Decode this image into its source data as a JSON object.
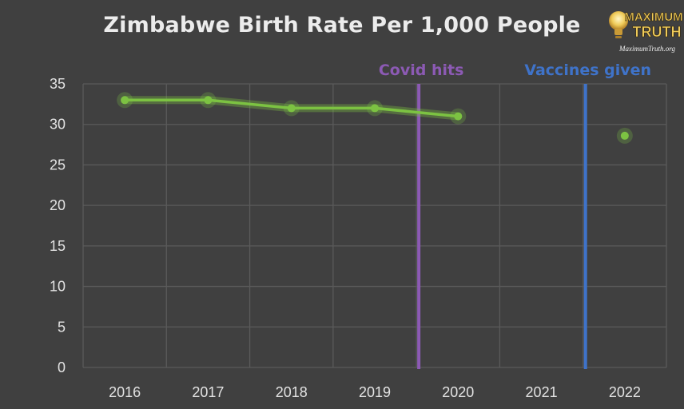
{
  "chart_data": {
    "type": "line",
    "title": "Zimbabwe Birth Rate Per 1,000 People",
    "xlabel": "",
    "ylabel": "",
    "categories": [
      "2016",
      "2017",
      "2018",
      "2019",
      "2020",
      "2021",
      "2022"
    ],
    "ylim": [
      0,
      35
    ],
    "yticks": [
      0,
      5,
      10,
      15,
      20,
      25,
      30,
      35
    ],
    "grid": true,
    "legend": "none",
    "series": [
      {
        "color": "#7cc242",
        "values": [
          33,
          33,
          32,
          32,
          31,
          null,
          28.6
        ]
      }
    ],
    "annotations": [
      {
        "text": "Covid hits",
        "x_between": [
          "2019",
          "2020"
        ],
        "position": 0.5,
        "color": "#8c5ab4"
      },
      {
        "text": "Vaccines given",
        "x_between": [
          "2021",
          "2022"
        ],
        "position": 0.5,
        "color": "#3f73c9"
      }
    ]
  },
  "logo": {
    "line1": "MAXIMUM",
    "line2": "TRUTH",
    "url": "MaximumTruth.org",
    "icon": "lightbulb-icon"
  },
  "colors": {
    "background": "#404040",
    "grid": "#5a5a5a",
    "text": "#e2e2e2",
    "logo_gold": "#e6b94a"
  }
}
